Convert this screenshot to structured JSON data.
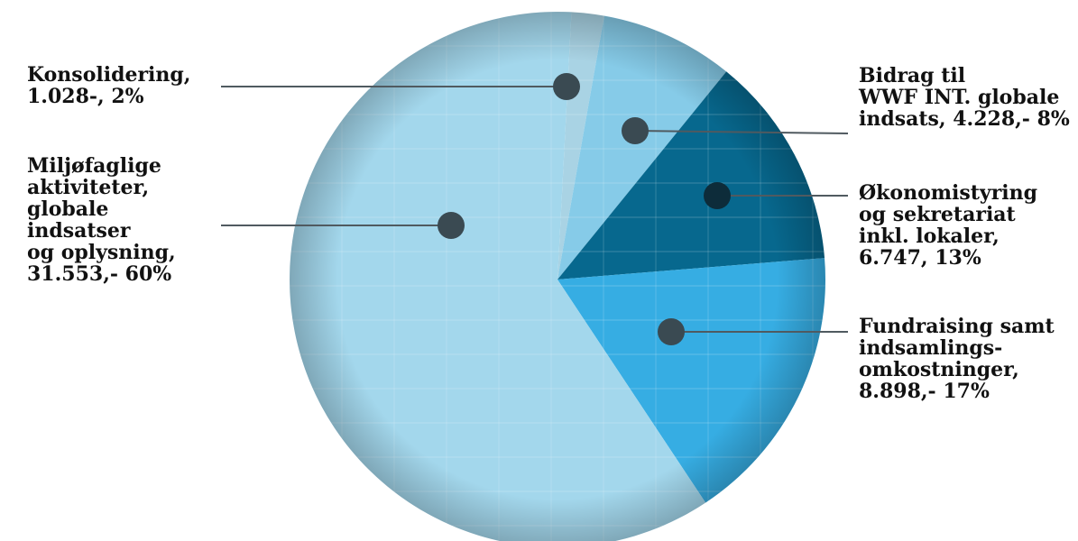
{
  "chart_data": {
    "type": "pie",
    "title": "",
    "slices": [
      {
        "label": "Konsolidering,\n1.028-, 2%",
        "value": 1028,
        "percent": 2,
        "color": "#a9d3e4"
      },
      {
        "label": "Bidrag til\nWWF INT. globale\nindsats, 4.228,- 8%",
        "value": 4228,
        "percent": 8,
        "color": "#86cbe8"
      },
      {
        "label": "Økonomistyring\nog sekretariat\ninkl. lokaler,\n6.747, 13%",
        "value": 6747,
        "percent": 13,
        "color": "#07688e"
      },
      {
        "label": "Fundraising samt\nindsamlings-\nomkostninger,\n8.898,- 17%",
        "value": 8898,
        "percent": 17,
        "color": "#36ade3"
      },
      {
        "label": "Miljøfaglige\naktiviteter,\nglobale\nindsatser\nog oplysning,\n31.553,- 60%",
        "value": 31553,
        "percent": 60,
        "color": "#a3d7ec"
      }
    ],
    "marker_color": "#3a4a52",
    "leader_color": "#505a60"
  }
}
